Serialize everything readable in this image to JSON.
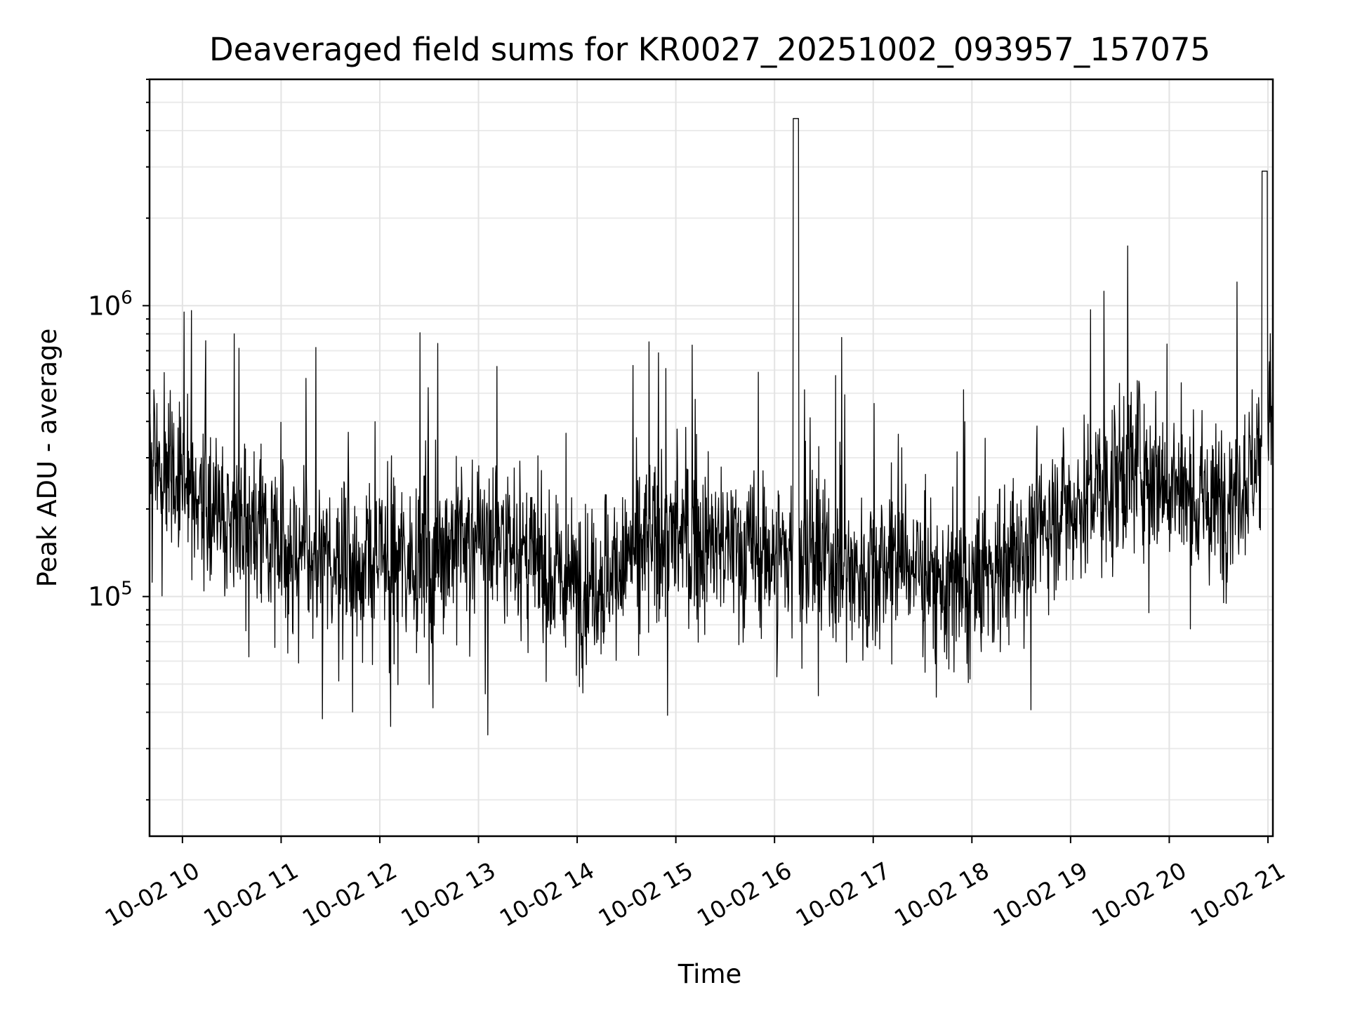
{
  "chart_data": {
    "type": "line",
    "title": "Deaveraged field sums for KR0027_20251002_093957_157075",
    "xlabel": "Time",
    "ylabel": "Peak ADU - average",
    "yscale": "log",
    "x_range": [
      "2025-10-02 09:40",
      "2025-10-02 21:03"
    ],
    "ylim": [
      15000,
      6000000
    ],
    "grid": true,
    "line_color": "#000000",
    "x_ticks": [
      "10-02 10",
      "10-02 11",
      "10-02 12",
      "10-02 13",
      "10-02 14",
      "10-02 15",
      "10-02 16",
      "10-02 17",
      "10-02 18",
      "10-02 19",
      "10-02 20",
      "10-02 21"
    ],
    "y_ticks": [
      {
        "value": 100000,
        "base": "10",
        "exp": "5"
      },
      {
        "value": 1000000,
        "base": "10",
        "exp": "6"
      }
    ],
    "series": [
      {
        "x": [
          "10-02 09:40",
          "10-02 09:55",
          "10-02 10:10",
          "10-02 10:25",
          "10-02 10:40",
          "10-02 10:55",
          "10-02 11:10",
          "10-02 11:25",
          "10-02 11:40",
          "10-02 11:55",
          "10-02 12:10",
          "10-02 12:25",
          "10-02 12:40",
          "10-02 12:55",
          "10-02 13:10",
          "10-02 13:25",
          "10-02 13:40",
          "10-02 13:55",
          "10-02 14:10",
          "10-02 14:25",
          "10-02 14:40",
          "10-02 14:55",
          "10-02 15:10",
          "10-02 15:25",
          "10-02 15:40",
          "10-02 15:55",
          "10-02 16:10",
          "10-02 16:25",
          "10-02 16:40",
          "10-02 16:55",
          "10-02 17:10",
          "10-02 17:25",
          "10-02 17:40",
          "10-02 17:55",
          "10-02 18:10",
          "10-02 18:25",
          "10-02 18:40",
          "10-02 18:55",
          "10-02 19:10",
          "10-02 19:25",
          "10-02 19:40",
          "10-02 19:55",
          "10-02 20:10",
          "10-02 20:25",
          "10-02 20:40",
          "10-02 20:55",
          "10-02 21:03"
        ],
        "y": [
          300000,
          280000,
          220000,
          190000,
          170000,
          160000,
          140000,
          125000,
          130000,
          125000,
          135000,
          140000,
          150000,
          160000,
          165000,
          140000,
          120000,
          110000,
          115000,
          125000,
          150000,
          160000,
          155000,
          150000,
          145000,
          140000,
          140000,
          135000,
          125000,
          120000,
          140000,
          130000,
          110000,
          100000,
          120000,
          140000,
          170000,
          200000,
          220000,
          250000,
          300000,
          260000,
          220000,
          200000,
          240000,
          300000,
          450000
        ]
      }
    ]
  }
}
